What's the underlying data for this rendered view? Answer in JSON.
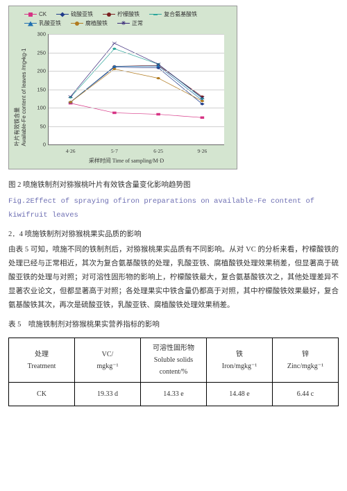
{
  "chart": {
    "type": "line",
    "background_color": "#d4e5d0",
    "plot_bg": "#ffffff",
    "grid_color": "#d0d0d0",
    "axis_color": "#666666",
    "xlabel": "采样时间  Time of sampling/M·D",
    "ylabel_cn": "叶片有效铁含量",
    "ylabel_en": "Available-Fe content of leaves /mg•kg-1",
    "ylim": [
      0,
      300
    ],
    "ytick_step": 50,
    "yticks": [
      "0",
      "50",
      "100",
      "150",
      "200",
      "250",
      "300"
    ],
    "xcats": [
      "4·26",
      "5·7",
      "6·25",
      "9·26"
    ],
    "series": [
      {
        "name": "CK",
        "label": "CK",
        "color": "#d63384",
        "marker": "square",
        "values": [
          112,
          86,
          82,
          73
        ]
      },
      {
        "name": "ferrous-sulfate",
        "label": "硫酸亚铁",
        "color": "#1f3b8a",
        "marker": "diamond",
        "values": [
          115,
          210,
          208,
          110
        ]
      },
      {
        "name": "ferric-citrate",
        "label": "柠檬酸铁",
        "color": "#7a1f1f",
        "marker": "circle",
        "values": [
          115,
          212,
          215,
          130
        ]
      },
      {
        "name": "compound-amino-acid-fe",
        "label": "复合氨基酸铁",
        "color": "#2aa59a",
        "marker": "dash",
        "values": [
          128,
          260,
          218,
          125
        ]
      },
      {
        "name": "ferrous-lactate",
        "label": "乳酸亚铁",
        "color": "#1f6fb0",
        "marker": "triangle",
        "values": [
          115,
          212,
          213,
          120
        ]
      },
      {
        "name": "humic-acid-fe",
        "label": "腐植酸铁",
        "color": "#b07a1f",
        "marker": "circle",
        "values": [
          115,
          205,
          180,
          118
        ]
      },
      {
        "name": "normal",
        "label": "正常",
        "color": "#3a2a7a",
        "marker": "x",
        "values": [
          130,
          275,
          218,
          127
        ]
      }
    ]
  },
  "captions": {
    "fig2_cn": "图 2 喷施铁制剂对猕猴桃叶片有效铁含量变化影响趋势图",
    "fig2_en": "Fig.2Effect of spraying ofiron preparations on available-Fe content of kiwifruit leaves"
  },
  "section": {
    "heading": "2．4 喷施铁制剂对猕猴桃果实品质的影响",
    "paragraph": "由表 5 可知，喷施不同的铁制剂后，对猕猴桃果实品质有不同影响。从对 VC 的分析来看，柠檬酸铁的处理已经与正常相近，其次为复合氨基酸铁的处理，乳酸亚铁、腐植酸铁处理效果稍差，但显著高于硫酸亚铁的处理与对照；对可溶性固形物的影响上，柠檬酸铁最大，复合氨基酸铁次之，其他处理差异不显著农业论文，但都显著高于对照；各处理果实中铁含量仍都高于对照，其中柠檬酸铁效果最好，复合氨基酸铁其次，再次是硫酸亚铁，乳酸亚铁、腐植酸铁处理效果稍差。"
  },
  "table5": {
    "caption": "表 5 喷施铁制剂对猕猴桃果实营养指标的影响",
    "columns": [
      {
        "cn": "处理",
        "en": "Treatment"
      },
      {
        "cn": "VC/",
        "en": "mgkg⁻¹"
      },
      {
        "cn": "可溶性固形物",
        "en": "Soluble solids content/%"
      },
      {
        "cn": "铁",
        "en": "Iron/mgkg⁻¹"
      },
      {
        "cn": "锌",
        "en": "Zinc/mgkg⁻¹"
      }
    ],
    "rows": [
      [
        "CK",
        "19.33 d",
        "14.33 e",
        "14.48 e",
        "6.44 c"
      ]
    ]
  }
}
